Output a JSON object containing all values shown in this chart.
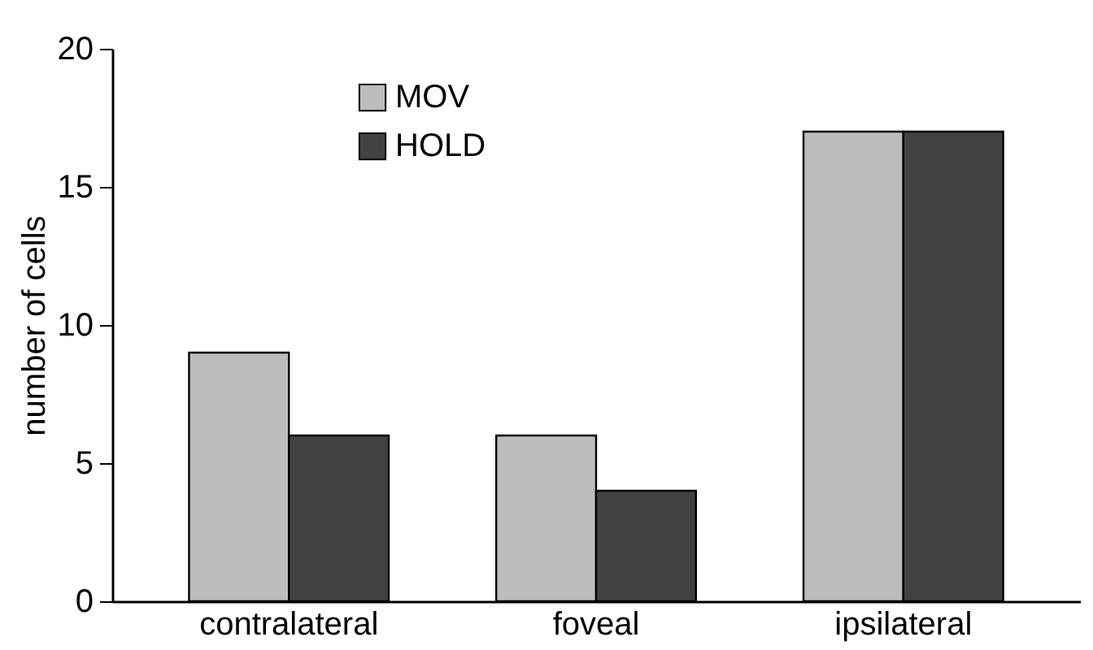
{
  "chart_data": {
    "type": "bar",
    "ylabel": "number of cells",
    "categories": [
      "contralateral",
      "foveal",
      "ipsilateral"
    ],
    "series": [
      {
        "name": "MOV",
        "color": "#bdbdbd",
        "values": [
          9,
          6,
          17
        ]
      },
      {
        "name": "HOLD",
        "color": "#424242",
        "values": [
          6,
          4,
          17
        ]
      }
    ],
    "ylim": [
      0,
      20
    ],
    "yticks": [
      0,
      5,
      10,
      15,
      20
    ],
    "grid": false,
    "legend": "top left"
  }
}
